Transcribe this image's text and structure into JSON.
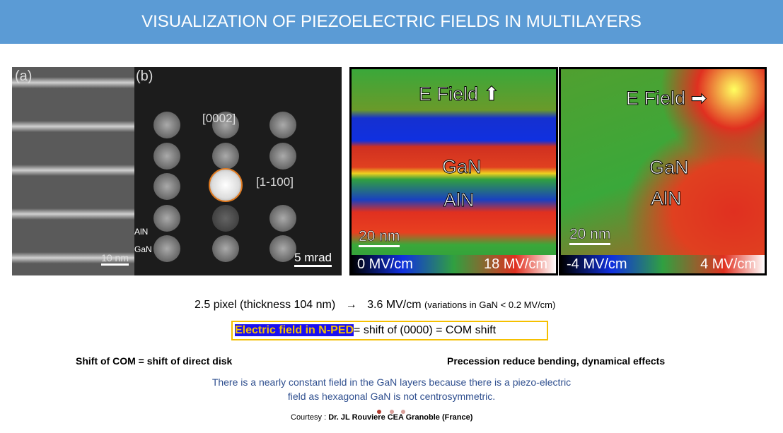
{
  "title": "VISUALIZATION OF PIEZOELECTRIC FIELDS IN MULTILAYERS",
  "figure_a": {
    "label": "(a)",
    "scale": "10 nm"
  },
  "figure_b": {
    "label": "(b)",
    "spot1": "[0002]",
    "spot2": "[1-100]",
    "scale": "5 mrad",
    "layer1": "AlN",
    "layer2": "GaN"
  },
  "map1": {
    "field_label": "E Field",
    "field_arrow": "up",
    "gan": "GaN",
    "aln": "AlN",
    "scale": "20 nm",
    "min": "0 MV/cm",
    "max": "18 MV/cm"
  },
  "map2": {
    "field_label": "E Field",
    "field_arrow": "right",
    "gan": "GaN",
    "aln": "AlN",
    "scale": "20 nm",
    "min": "-4 MV/cm",
    "max": "4 MV/cm"
  },
  "line1": {
    "left": "2.5 pixel (thickness 104 nm)",
    "arrow": "→",
    "value": "3.6 MV/cm",
    "note": "(variations in GaN < 0.2 MV/cm)"
  },
  "box": {
    "highlight": "Electric field in N-PED",
    "rest": "= shift of (0000) = COM shift"
  },
  "left_note": "Shift of COM = shift of direct disk",
  "right_note": "Precession reduce bending, dynamical effects",
  "explanation_1": "There is a nearly constant field in the GaN layers because there is a piezo-electric",
  "explanation_2": "field as hexagonal GaN is not centrosymmetric.",
  "courtesy_prefix": "Courtesy : ",
  "courtesy": "Dr. JL Rouviere CEA  Granoble  (France)",
  "colors": {
    "title_bar": "#5b9bd5",
    "box_border": "#f5c000",
    "highlight_bg": "#1a10f0",
    "highlight_text": "#f5c000",
    "explanation": "#2f4f8f"
  }
}
